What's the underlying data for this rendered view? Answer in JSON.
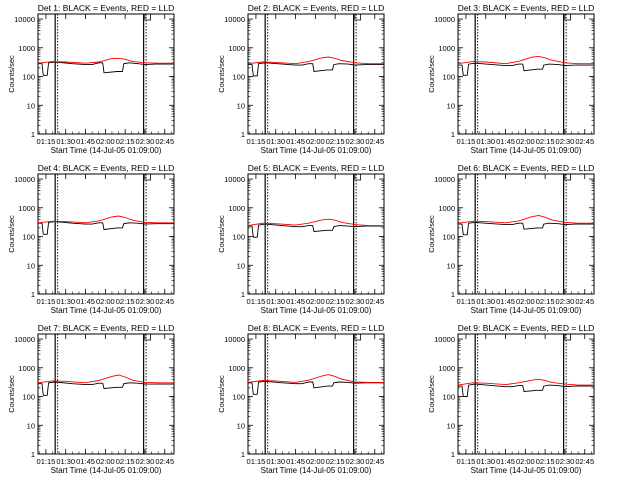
{
  "chart_data": [
    {
      "type": "line",
      "title": "Det 1: BLACK = Events, RED = LLD",
      "xlabel": "Start Time (14-Jul-05 01:09:00)",
      "ylabel": "Counts/sec",
      "x_ticks": [
        "01:15",
        "01:30",
        "01:45",
        "02:00",
        "02:15",
        "02:30",
        "02:45"
      ],
      "y_ticks": [
        "1",
        "10",
        "100",
        "1000",
        "10000"
      ],
      "y_scale": "log",
      "ylim": [
        1,
        15000
      ],
      "xlim": [
        "01:09",
        "02:52"
      ],
      "markers": [
        "01:22",
        "02:29"
      ],
      "series": [
        {
          "name": "Events",
          "color": "#000000",
          "x": [
            "01:09",
            "01:12",
            "01:13",
            "01:16",
            "01:17",
            "01:22",
            "01:35",
            "01:45",
            "01:50",
            "01:55",
            "01:58",
            "01:59",
            "02:09",
            "02:13",
            "02:14",
            "02:18",
            "02:25",
            "02:30",
            "02:38",
            "02:45",
            "02:52"
          ],
          "y": [
            280,
            280,
            110,
            110,
            300,
            320,
            280,
            260,
            260,
            300,
            300,
            135,
            150,
            150,
            280,
            300,
            280,
            260,
            270,
            270,
            270
          ]
        },
        {
          "name": "LLD",
          "color": "#ff0000",
          "x": [
            "01:09",
            "01:20",
            "01:30",
            "01:45",
            "01:55",
            "02:05",
            "02:10",
            "02:15",
            "02:20",
            "02:30",
            "02:40",
            "02:52"
          ],
          "y": [
            290,
            330,
            320,
            290,
            320,
            420,
            430,
            400,
            340,
            300,
            290,
            290
          ]
        }
      ]
    },
    {
      "type": "line",
      "title": "Det 2: BLACK = Events, RED = LLD",
      "xlabel": "Start Time (14-Jul-05 01:09:00)",
      "ylabel": "Counts/sec",
      "x_ticks": [
        "01:15",
        "01:30",
        "01:45",
        "02:00",
        "02:15",
        "02:30",
        "02:45"
      ],
      "y_ticks": [
        "1",
        "10",
        "100",
        "1000",
        "10000"
      ],
      "y_scale": "log",
      "ylim": [
        1,
        15000
      ],
      "xlim": [
        "01:09",
        "02:52"
      ],
      "markers": [
        "01:22",
        "02:29"
      ],
      "series": [
        {
          "name": "Events",
          "color": "#000000",
          "x": [
            "01:09",
            "01:12",
            "01:13",
            "01:16",
            "01:17",
            "01:22",
            "01:35",
            "01:45",
            "01:50",
            "01:55",
            "01:58",
            "01:59",
            "02:09",
            "02:13",
            "02:14",
            "02:18",
            "02:25",
            "02:30",
            "02:38",
            "02:45",
            "02:52"
          ],
          "y": [
            260,
            260,
            105,
            105,
            280,
            300,
            270,
            250,
            250,
            280,
            280,
            150,
            170,
            170,
            260,
            280,
            270,
            250,
            260,
            260,
            260
          ]
        },
        {
          "name": "LLD",
          "color": "#ff0000",
          "x": [
            "01:09",
            "01:20",
            "01:30",
            "01:45",
            "01:55",
            "02:05",
            "02:10",
            "02:15",
            "02:20",
            "02:30",
            "02:40",
            "02:52"
          ],
          "y": [
            280,
            320,
            310,
            280,
            330,
            450,
            480,
            430,
            360,
            300,
            280,
            280
          ]
        }
      ]
    },
    {
      "type": "line",
      "title": "Det 3: BLACK = Events, RED = LLD",
      "xlabel": "Start Time (14-Jul-05 01:09:00)",
      "ylabel": "Counts/sec",
      "x_ticks": [
        "01:15",
        "01:30",
        "01:45",
        "02:00",
        "02:15",
        "02:30",
        "02:45"
      ],
      "y_ticks": [
        "1",
        "10",
        "100",
        "1000",
        "10000"
      ],
      "y_scale": "log",
      "ylim": [
        1,
        15000
      ],
      "xlim": [
        "01:09",
        "02:52"
      ],
      "markers": [
        "01:22",
        "02:29"
      ],
      "series": [
        {
          "name": "Events",
          "color": "#000000",
          "x": [
            "01:09",
            "01:12",
            "01:13",
            "01:16",
            "01:17",
            "01:22",
            "01:35",
            "01:45",
            "01:50",
            "01:55",
            "01:58",
            "01:59",
            "02:09",
            "02:13",
            "02:14",
            "02:18",
            "02:25",
            "02:30",
            "02:38",
            "02:45",
            "02:52"
          ],
          "y": [
            250,
            250,
            110,
            110,
            270,
            290,
            260,
            240,
            240,
            270,
            270,
            160,
            180,
            180,
            250,
            270,
            260,
            240,
            250,
            250,
            250
          ]
        },
        {
          "name": "LLD",
          "color": "#ff0000",
          "x": [
            "01:09",
            "01:20",
            "01:30",
            "01:45",
            "01:55",
            "02:05",
            "02:10",
            "02:15",
            "02:20",
            "02:30",
            "02:40",
            "02:52"
          ],
          "y": [
            280,
            330,
            320,
            280,
            340,
            470,
            500,
            450,
            370,
            300,
            280,
            280
          ]
        }
      ]
    },
    {
      "type": "line",
      "title": "Det 4: BLACK = Events, RED = LLD",
      "xlabel": "Start Time (14-Jul-05 01:09:00)",
      "ylabel": "Counts/sec",
      "x_ticks": [
        "01:15",
        "01:30",
        "01:45",
        "02:00",
        "02:15",
        "02:30",
        "02:45"
      ],
      "y_ticks": [
        "1",
        "10",
        "100",
        "1000",
        "10000"
      ],
      "y_scale": "log",
      "ylim": [
        1,
        15000
      ],
      "xlim": [
        "01:09",
        "02:52"
      ],
      "markers": [
        "01:22",
        "02:29"
      ],
      "series": [
        {
          "name": "Events",
          "color": "#000000",
          "x": [
            "01:09",
            "01:12",
            "01:13",
            "01:16",
            "01:17",
            "01:22",
            "01:35",
            "01:45",
            "01:50",
            "01:55",
            "01:58",
            "01:59",
            "02:09",
            "02:13",
            "02:14",
            "02:18",
            "02:25",
            "02:30",
            "02:38",
            "02:45",
            "02:52"
          ],
          "y": [
            290,
            290,
            120,
            120,
            310,
            330,
            290,
            270,
            270,
            300,
            300,
            175,
            200,
            200,
            280,
            300,
            290,
            270,
            280,
            280,
            280
          ]
        },
        {
          "name": "LLD",
          "color": "#ff0000",
          "x": [
            "01:09",
            "01:20",
            "01:30",
            "01:45",
            "01:55",
            "02:05",
            "02:10",
            "02:15",
            "02:20",
            "02:30",
            "02:40",
            "02:52"
          ],
          "y": [
            300,
            340,
            330,
            300,
            350,
            480,
            520,
            460,
            380,
            310,
            300,
            300
          ]
        }
      ]
    },
    {
      "type": "line",
      "title": "Det 5: BLACK = Events, RED = LLD",
      "xlabel": "Start Time (14-Jul-05 01:09:00)",
      "ylabel": "Counts/sec",
      "x_ticks": [
        "01:15",
        "01:30",
        "01:45",
        "02:00",
        "02:15",
        "02:30",
        "02:45"
      ],
      "y_ticks": [
        "1",
        "10",
        "100",
        "1000",
        "10000"
      ],
      "y_scale": "log",
      "ylim": [
        1,
        15000
      ],
      "xlim": [
        "01:09",
        "02:52"
      ],
      "markers": [
        "01:22",
        "02:29"
      ],
      "series": [
        {
          "name": "Events",
          "color": "#000000",
          "x": [
            "01:09",
            "01:12",
            "01:13",
            "01:16",
            "01:17",
            "01:22",
            "01:35",
            "01:45",
            "01:50",
            "01:55",
            "01:58",
            "01:59",
            "02:09",
            "02:13",
            "02:14",
            "02:18",
            "02:25",
            "02:30",
            "02:38",
            "02:45",
            "02:52"
          ],
          "y": [
            230,
            230,
            95,
            95,
            250,
            270,
            240,
            220,
            220,
            240,
            240,
            150,
            165,
            165,
            220,
            240,
            230,
            220,
            230,
            230,
            230
          ]
        },
        {
          "name": "LLD",
          "color": "#ff0000",
          "x": [
            "01:09",
            "01:20",
            "01:30",
            "01:45",
            "01:55",
            "02:05",
            "02:10",
            "02:15",
            "02:20",
            "02:30",
            "02:40",
            "02:52"
          ],
          "y": [
            240,
            290,
            280,
            250,
            290,
            380,
            400,
            370,
            310,
            260,
            240,
            240
          ]
        }
      ]
    },
    {
      "type": "line",
      "title": "Det 6: BLACK = Events, RED = LLD",
      "xlabel": "Start Time (14-Jul-05 01:09:00)",
      "ylabel": "Counts/sec",
      "x_ticks": [
        "01:15",
        "01:30",
        "01:45",
        "02:00",
        "02:15",
        "02:30",
        "02:45"
      ],
      "y_ticks": [
        "1",
        "10",
        "100",
        "1000",
        "10000"
      ],
      "y_scale": "log",
      "ylim": [
        1,
        15000
      ],
      "xlim": [
        "01:09",
        "02:52"
      ],
      "markers": [
        "01:22",
        "02:29"
      ],
      "series": [
        {
          "name": "Events",
          "color": "#000000",
          "x": [
            "01:09",
            "01:12",
            "01:13",
            "01:16",
            "01:17",
            "01:22",
            "01:35",
            "01:45",
            "01:50",
            "01:55",
            "01:58",
            "01:59",
            "02:09",
            "02:13",
            "02:14",
            "02:18",
            "02:25",
            "02:30",
            "02:38",
            "02:45",
            "02:52"
          ],
          "y": [
            270,
            270,
            115,
            115,
            290,
            310,
            280,
            260,
            260,
            290,
            290,
            180,
            200,
            200,
            270,
            290,
            280,
            260,
            270,
            270,
            270
          ]
        },
        {
          "name": "LLD",
          "color": "#ff0000",
          "x": [
            "01:09",
            "01:20",
            "01:30",
            "01:45",
            "01:55",
            "02:05",
            "02:10",
            "02:15",
            "02:20",
            "02:30",
            "02:40",
            "02:52"
          ],
          "y": [
            290,
            340,
            330,
            300,
            350,
            490,
            540,
            470,
            380,
            310,
            290,
            290
          ]
        }
      ]
    },
    {
      "type": "line",
      "title": "Det 7: BLACK = Events, RED = LLD",
      "xlabel": "Start Time (14-Jul-05 01:09:00)",
      "ylabel": "Counts/sec",
      "x_ticks": [
        "01:15",
        "01:30",
        "01:45",
        "02:00",
        "02:15",
        "02:30",
        "02:45"
      ],
      "y_ticks": [
        "1",
        "10",
        "100",
        "1000",
        "10000"
      ],
      "y_scale": "log",
      "ylim": [
        1,
        15000
      ],
      "xlim": [
        "01:09",
        "02:52"
      ],
      "markers": [
        "01:22",
        "02:29"
      ],
      "series": [
        {
          "name": "Events",
          "color": "#000000",
          "x": [
            "01:09",
            "01:12",
            "01:13",
            "01:16",
            "01:17",
            "01:22",
            "01:35",
            "01:45",
            "01:50",
            "01:55",
            "01:58",
            "01:59",
            "02:09",
            "02:13",
            "02:14",
            "02:18",
            "02:25",
            "02:30",
            "02:38",
            "02:45",
            "02:52"
          ],
          "y": [
            280,
            280,
            110,
            110,
            300,
            320,
            280,
            260,
            260,
            290,
            290,
            190,
            210,
            210,
            280,
            300,
            290,
            270,
            270,
            270,
            270
          ]
        },
        {
          "name": "LLD",
          "color": "#ff0000",
          "x": [
            "01:09",
            "01:20",
            "01:30",
            "01:45",
            "01:55",
            "02:05",
            "02:10",
            "02:15",
            "02:20",
            "02:30",
            "02:40",
            "02:52"
          ],
          "y": [
            300,
            350,
            340,
            300,
            360,
            500,
            560,
            480,
            380,
            310,
            300,
            300
          ]
        }
      ]
    },
    {
      "type": "line",
      "title": "Det 8: BLACK = Events, RED = LLD",
      "xlabel": "Start Time (14-Jul-05 01:09:00)",
      "ylabel": "Counts/sec",
      "x_ticks": [
        "01:15",
        "01:30",
        "01:45",
        "02:00",
        "02:15",
        "02:30",
        "02:45"
      ],
      "y_ticks": [
        "1",
        "10",
        "100",
        "1000",
        "10000"
      ],
      "y_scale": "log",
      "ylim": [
        1,
        15000
      ],
      "xlim": [
        "01:09",
        "02:52"
      ],
      "markers": [
        "01:22",
        "02:29"
      ],
      "series": [
        {
          "name": "Events",
          "color": "#000000",
          "x": [
            "01:09",
            "01:12",
            "01:13",
            "01:16",
            "01:17",
            "01:22",
            "01:35",
            "01:45",
            "01:50",
            "01:55",
            "01:58",
            "01:59",
            "02:09",
            "02:13",
            "02:14",
            "02:18",
            "02:25",
            "02:30",
            "02:38",
            "02:45",
            "02:52"
          ],
          "y": [
            300,
            300,
            120,
            120,
            320,
            340,
            300,
            280,
            280,
            320,
            320,
            200,
            230,
            230,
            300,
            320,
            310,
            290,
            300,
            300,
            300
          ]
        },
        {
          "name": "LLD",
          "color": "#ff0000",
          "x": [
            "01:09",
            "01:20",
            "01:30",
            "01:45",
            "01:55",
            "02:05",
            "02:10",
            "02:15",
            "02:20",
            "02:30",
            "02:40",
            "02:52"
          ],
          "y": [
            310,
            360,
            350,
            310,
            370,
            520,
            580,
            500,
            400,
            320,
            310,
            310
          ]
        }
      ]
    },
    {
      "type": "line",
      "title": "Det 9: BLACK = Events, RED = LLD",
      "xlabel": "Start Time (14-Jul-05 01:09:00)",
      "ylabel": "Counts/sec",
      "x_ticks": [
        "01:15",
        "01:30",
        "01:45",
        "02:00",
        "02:15",
        "02:30",
        "02:45"
      ],
      "y_ticks": [
        "1",
        "10",
        "100",
        "1000",
        "10000"
      ],
      "y_scale": "log",
      "ylim": [
        1,
        15000
      ],
      "xlim": [
        "01:09",
        "02:52"
      ],
      "markers": [
        "01:22",
        "02:29"
      ],
      "series": [
        {
          "name": "Events",
          "color": "#000000",
          "x": [
            "01:09",
            "01:12",
            "01:13",
            "01:16",
            "01:17",
            "01:22",
            "01:35",
            "01:45",
            "01:50",
            "01:55",
            "01:58",
            "01:59",
            "02:09",
            "02:13",
            "02:14",
            "02:18",
            "02:25",
            "02:30",
            "02:38",
            "02:45",
            "02:52"
          ],
          "y": [
            230,
            230,
            100,
            100,
            250,
            270,
            240,
            220,
            220,
            240,
            240,
            150,
            165,
            165,
            230,
            250,
            240,
            220,
            230,
            230,
            230
          ]
        },
        {
          "name": "LLD",
          "color": "#ff0000",
          "x": [
            "01:09",
            "01:20",
            "01:30",
            "01:45",
            "01:55",
            "02:05",
            "02:10",
            "02:15",
            "02:20",
            "02:30",
            "02:40",
            "02:52"
          ],
          "y": [
            250,
            300,
            290,
            260,
            300,
            370,
            400,
            360,
            310,
            270,
            250,
            250
          ]
        }
      ]
    }
  ]
}
